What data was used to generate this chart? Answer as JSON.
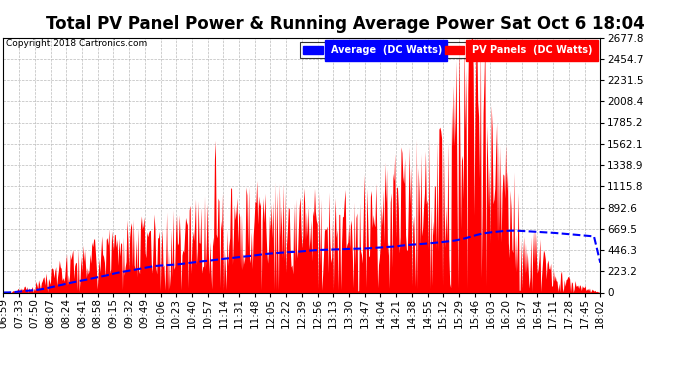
{
  "title": "Total PV Panel Power & Running Average Power Sat Oct 6 18:04",
  "copyright": "Copyright 2018 Cartronics.com",
  "legend_labels": [
    "Average  (DC Watts)",
    "PV Panels  (DC Watts)"
  ],
  "legend_colors": [
    "#0000ff",
    "#ff0000"
  ],
  "y_max": 2677.8,
  "y_ticks": [
    0.0,
    223.2,
    446.3,
    669.5,
    892.6,
    1115.8,
    1338.9,
    1562.1,
    1785.2,
    2008.4,
    2231.5,
    2454.7,
    2677.8
  ],
  "x_labels": [
    "06:59",
    "07:33",
    "07:50",
    "08:07",
    "08:24",
    "08:41",
    "08:58",
    "09:15",
    "09:32",
    "09:49",
    "10:06",
    "10:23",
    "10:40",
    "10:57",
    "11:14",
    "11:31",
    "11:48",
    "12:05",
    "12:22",
    "12:39",
    "12:56",
    "13:13",
    "13:30",
    "13:47",
    "14:04",
    "14:21",
    "14:38",
    "14:55",
    "15:12",
    "15:29",
    "15:46",
    "16:03",
    "16:20",
    "16:37",
    "16:54",
    "17:11",
    "17:28",
    "17:45",
    "18:02"
  ],
  "background_color": "#ffffff",
  "grid_color": "#bbbbbb",
  "bar_color": "#ff0000",
  "line_color": "#0000ff",
  "title_fontsize": 12,
  "tick_fontsize": 7.5,
  "copyright_fontsize": 6.5
}
